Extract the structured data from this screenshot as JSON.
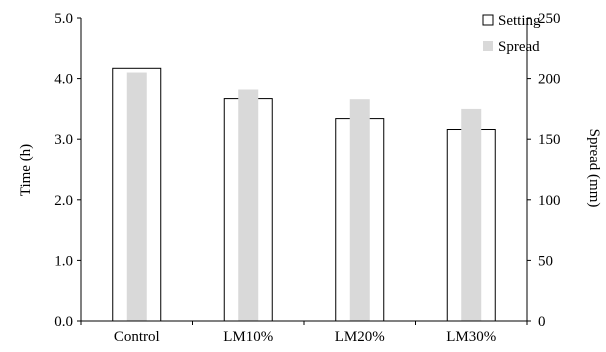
{
  "chart_data": {
    "type": "bar",
    "categories": [
      "Control",
      "LM10%",
      "LM20%",
      "LM30%"
    ],
    "series": [
      {
        "name": "Setting",
        "values": [
          4.17,
          3.67,
          3.34,
          3.16
        ],
        "axis": "left",
        "color": "#ffffff",
        "stroke": "#000000"
      },
      {
        "name": "Spread",
        "values": [
          205,
          191,
          183,
          175
        ],
        "axis": "right",
        "color": "#d9d9d9"
      }
    ],
    "ylabel": "Time (h)",
    "ylabel_right": "Spread (mm)",
    "ylim": [
      0,
      5
    ],
    "ylim_right": [
      0,
      250
    ],
    "yticks": [
      "0.0",
      "1.0",
      "2.0",
      "3.0",
      "4.0",
      "5.0"
    ],
    "yticks_right": [
      "0",
      "50",
      "100",
      "150",
      "200",
      "250"
    ],
    "grid": false,
    "legend_position": "top-right"
  }
}
